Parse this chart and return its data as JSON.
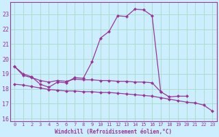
{
  "xlabel": "Windchill (Refroidissement éolien,°C)",
  "bg_color": "#cceeff",
  "grid_color": "#aaddcc",
  "line_color": "#993399",
  "ylim": [
    15.8,
    23.8
  ],
  "xlim": [
    -0.5,
    23.5
  ],
  "yticks": [
    16,
    17,
    18,
    19,
    20,
    21,
    22,
    23
  ],
  "xticks": [
    0,
    1,
    2,
    3,
    4,
    5,
    6,
    7,
    8,
    9,
    10,
    11,
    12,
    13,
    14,
    15,
    16,
    17,
    18,
    19,
    20,
    21,
    22,
    23
  ],
  "curve_top_x": [
    0,
    1,
    2,
    3,
    4,
    5,
    6,
    7,
    8,
    9,
    10,
    11,
    12,
    13,
    14,
    15,
    16,
    17,
    18,
    19,
    20
  ],
  "curve_top_y": [
    19.5,
    19.0,
    18.8,
    18.3,
    18.1,
    18.45,
    18.4,
    18.75,
    18.7,
    19.8,
    21.4,
    21.85,
    22.9,
    22.85,
    23.35,
    23.3,
    22.9,
    17.8,
    17.45,
    17.5,
    17.5
  ],
  "curve_mid_x": [
    0,
    1,
    2,
    3,
    4,
    5,
    6,
    7,
    8,
    9,
    10,
    11,
    12,
    13,
    14,
    15,
    16,
    17
  ],
  "curve_mid_y": [
    19.5,
    18.9,
    18.75,
    18.55,
    18.45,
    18.55,
    18.5,
    18.65,
    18.6,
    18.6,
    18.55,
    18.55,
    18.5,
    18.5,
    18.45,
    18.45,
    18.4,
    17.8
  ],
  "curve_bot_x": [
    0,
    1,
    2,
    3,
    4,
    5,
    6,
    7,
    8,
    9,
    10,
    11,
    12,
    13,
    14,
    15,
    16,
    17,
    18,
    19,
    20,
    21,
    22,
    23
  ],
  "curve_bot_y": [
    18.3,
    18.25,
    18.15,
    18.05,
    17.95,
    17.9,
    17.85,
    17.85,
    17.8,
    17.8,
    17.75,
    17.75,
    17.7,
    17.65,
    17.6,
    17.55,
    17.5,
    17.4,
    17.3,
    17.2,
    17.1,
    17.05,
    16.9,
    16.5
  ]
}
